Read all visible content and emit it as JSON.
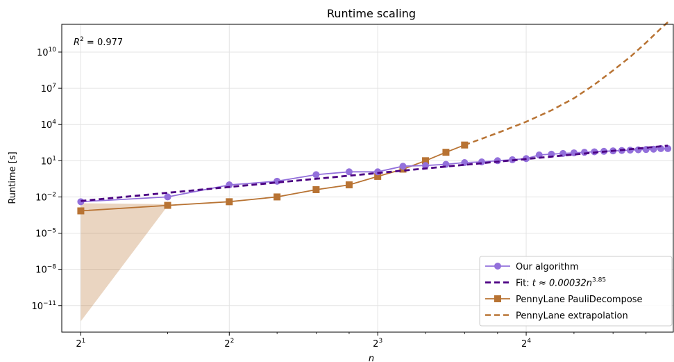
{
  "chart_data": {
    "type": "line",
    "title": "Runtime scaling",
    "xlabel": "n",
    "ylabel": "Runtime [s]",
    "x_scale": "log2",
    "y_scale": "log10",
    "xlim": [
      1.83,
      31.8
    ],
    "ylim_log10": [
      -13.2,
      12.3
    ],
    "grid": true,
    "legend_position": "lower-right",
    "annotation": {
      "base": "R",
      "exp": "2",
      "rest": " = 0.977"
    },
    "x_ticks": [
      {
        "base": "2",
        "exp": "1",
        "value": 2
      },
      {
        "base": "2",
        "exp": "2",
        "value": 4
      },
      {
        "base": "2",
        "exp": "3",
        "value": 8
      },
      {
        "base": "2",
        "exp": "4",
        "value": 16
      }
    ],
    "y_ticks": [
      {
        "base": "10",
        "exp": "10",
        "log10": 10
      },
      {
        "base": "10",
        "exp": "7",
        "log10": 7
      },
      {
        "base": "10",
        "exp": "4",
        "log10": 4
      },
      {
        "base": "10",
        "exp": "1",
        "log10": 1
      },
      {
        "base": "10",
        "exp": "−2",
        "log10": -2
      },
      {
        "base": "10",
        "exp": "−5",
        "log10": -5
      },
      {
        "base": "10",
        "exp": "−8",
        "log10": -8
      },
      {
        "base": "10",
        "exp": "−11",
        "log10": -11
      }
    ],
    "series": [
      {
        "name": "Our algorithm",
        "style": "line-circle",
        "color": "#9370DB",
        "x": [
          2,
          3,
          4,
          5,
          6,
          7,
          8,
          9,
          10,
          11,
          12,
          13,
          14,
          15,
          16,
          17,
          18,
          19,
          20,
          21,
          22,
          23,
          24,
          25,
          26,
          27,
          28,
          29,
          30,
          31
        ],
        "y": [
          0.004,
          0.01,
          0.1,
          0.2,
          0.7,
          1.2,
          1.2,
          3.5,
          4,
          5,
          7,
          8,
          10,
          12,
          15,
          30,
          35,
          40,
          45,
          50,
          55,
          60,
          65,
          70,
          75,
          80,
          85,
          90,
          100,
          100
        ]
      },
      {
        "name": "Fit: ",
        "name_math": {
          "pre": "t ≈ 0.00032n",
          "exp": "3.85"
        },
        "style": "dashed",
        "color": "#4B0082",
        "coef": 0.00032,
        "exponent": 3.85
      },
      {
        "name": "PennyLane PauliDecompose",
        "style": "line-square",
        "color": "#B87333",
        "x": [
          2,
          3,
          4,
          5,
          6,
          7,
          8,
          9,
          10,
          11,
          12
        ],
        "y": [
          0.0007,
          0.002,
          0.004,
          0.01,
          0.04,
          0.1,
          0.5,
          2,
          10,
          50,
          200
        ]
      },
      {
        "name": "PennyLane extrapolation",
        "style": "dashed",
        "color": "#B87333",
        "x": [
          12,
          14,
          16,
          18,
          20,
          22,
          24,
          26,
          28,
          30,
          31
        ],
        "y": [
          200,
          2000,
          17000,
          150000,
          1500000,
          20000000,
          300000000,
          4000000000,
          60000000000,
          900000000000,
          3000000000000
        ]
      }
    ],
    "uncertainty_band": {
      "x": [
        2,
        3
      ],
      "y_low": [
        5e-13,
        0.0018
      ],
      "y_high": [
        0.003,
        0.0025
      ],
      "color": "#B87333"
    }
  }
}
